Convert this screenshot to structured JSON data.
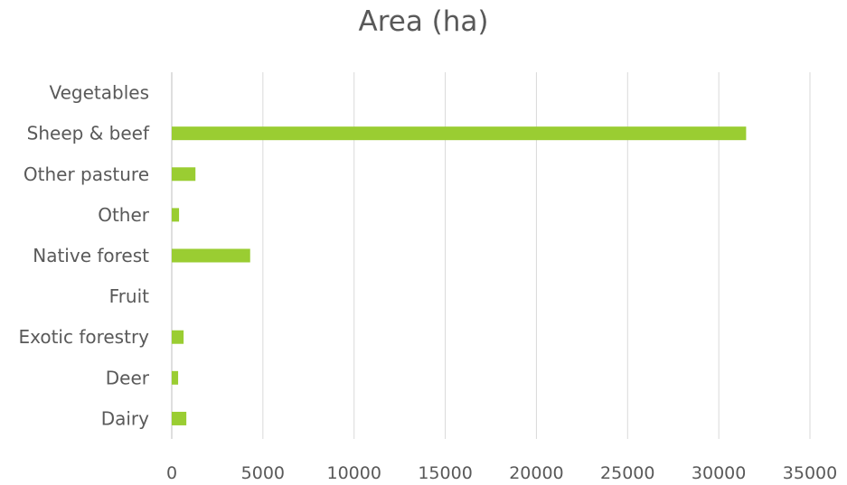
{
  "chart_data": {
    "type": "bar",
    "orientation": "horizontal",
    "title": "Area (ha)",
    "xlabel": "",
    "ylabel": "",
    "categories": [
      "Vegetables",
      "Sheep & beef",
      "Other pasture",
      "Other",
      "Native forest",
      "Fruit",
      "Exotic forestry",
      "Deer",
      "Dairy"
    ],
    "values": [
      0,
      31500,
      1300,
      400,
      4300,
      0,
      650,
      350,
      800
    ],
    "xlim": [
      0,
      35000
    ],
    "xticks": [
      "0",
      "5000",
      "10000",
      "15000",
      "20000",
      "25000",
      "30000",
      "35000"
    ],
    "grid": "vertical",
    "legend": "none",
    "colors": {
      "bar": "#9ACD32",
      "grid": "#D9D9D9",
      "text": "#595959"
    }
  }
}
